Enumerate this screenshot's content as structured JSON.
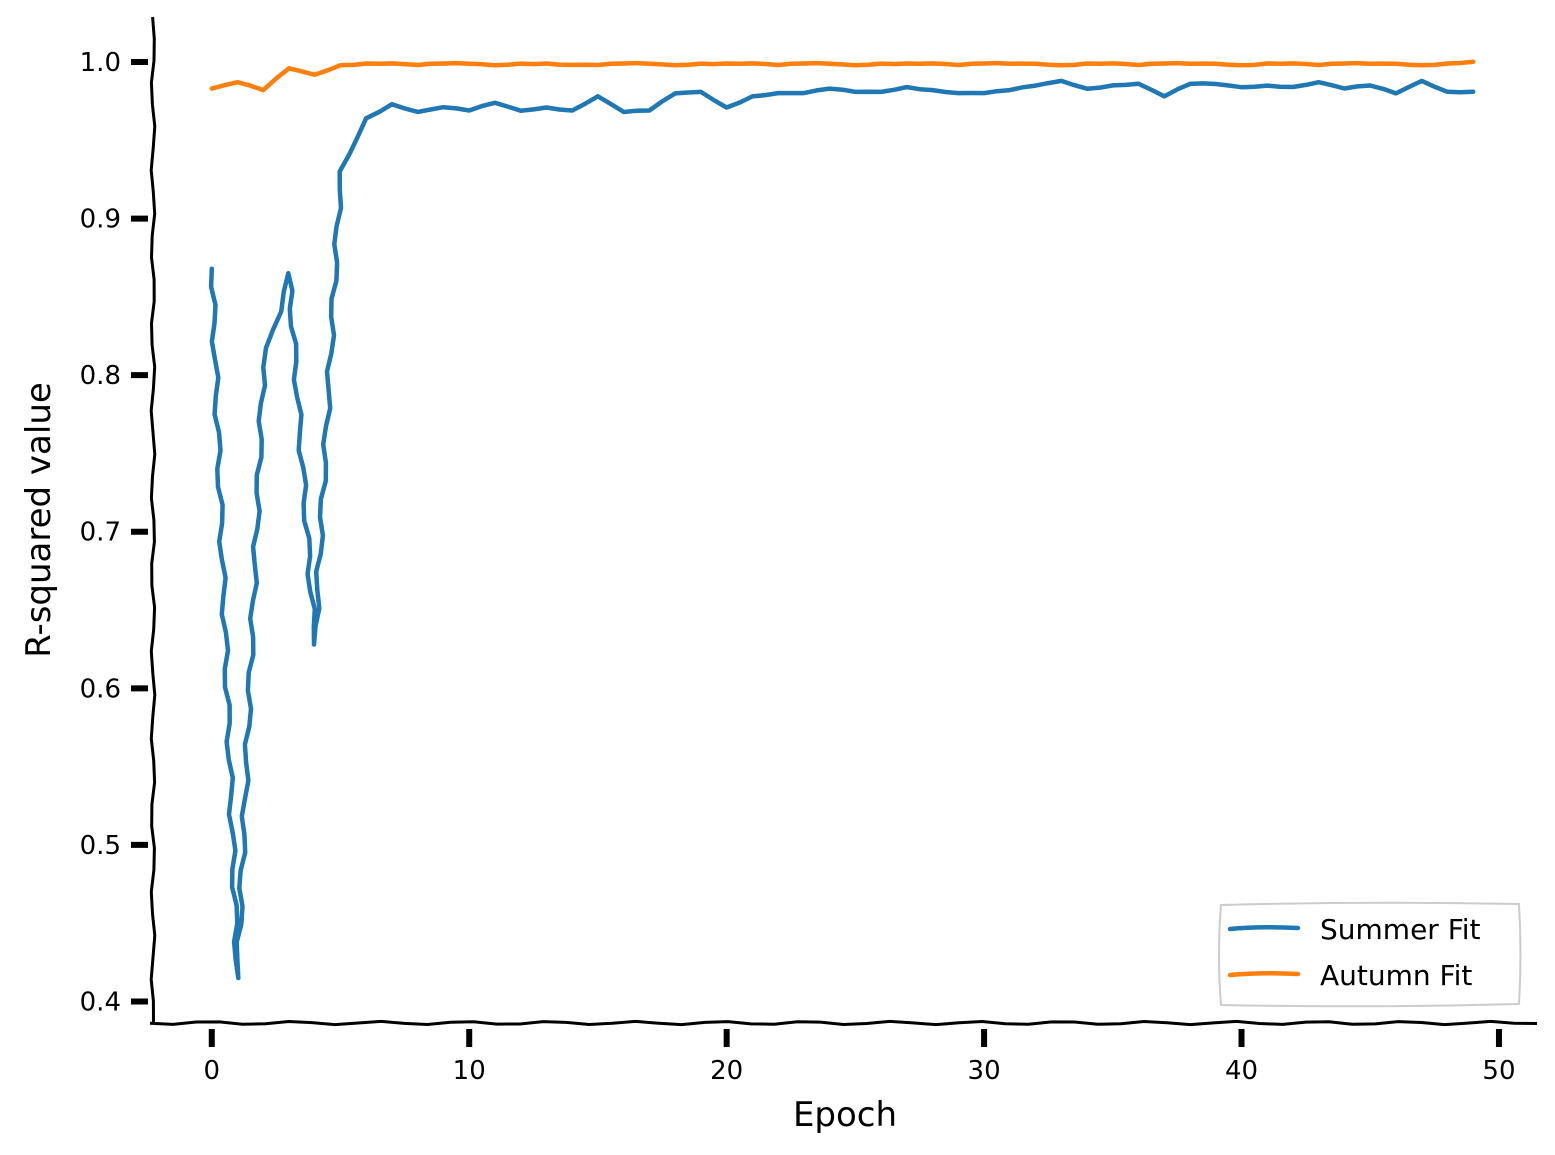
{
  "chart_data": {
    "type": "line",
    "title": "",
    "xlabel": "Epoch",
    "ylabel": "R-squared value",
    "xlim": [
      -2.4,
      51.4
    ],
    "ylim": [
      0.385,
      1.03
    ],
    "x_ticks": [
      0,
      10,
      20,
      30,
      40,
      50
    ],
    "y_ticks": [
      0.4,
      0.5,
      0.6,
      0.7,
      0.8,
      0.9,
      1.0
    ],
    "x_tick_labels": [
      "0",
      "10",
      "20",
      "30",
      "40",
      "50"
    ],
    "y_tick_labels": [
      "0.4",
      "0.5",
      "0.6",
      "0.7",
      "0.8",
      "0.9",
      "1.0"
    ],
    "grid": false,
    "legend_position": "lower-right",
    "style": "xkcd",
    "series": [
      {
        "name": "Summer Fit",
        "color": "#1f77b4",
        "x": [
          0,
          1,
          2,
          3,
          4,
          5,
          6,
          7,
          8,
          9,
          10,
          11,
          12,
          13,
          14,
          15,
          16,
          17,
          18,
          19,
          20,
          21,
          22,
          23,
          24,
          25,
          26,
          27,
          28,
          29,
          30,
          31,
          32,
          33,
          34,
          35,
          36,
          37,
          38,
          39,
          40,
          41,
          42,
          43,
          44,
          45,
          46,
          47,
          48,
          49
        ],
        "values": [
          0.868,
          0.415,
          0.805,
          0.865,
          0.628,
          0.93,
          0.964,
          0.973,
          0.968,
          0.971,
          0.969,
          0.974,
          0.969,
          0.971,
          0.969,
          0.978,
          0.968,
          0.969,
          0.98,
          0.981,
          0.971,
          0.978,
          0.98,
          0.98,
          0.983,
          0.981,
          0.981,
          0.984,
          0.982,
          0.98,
          0.98,
          0.982,
          0.985,
          0.988,
          0.983,
          0.985,
          0.986,
          0.978,
          0.986,
          0.986,
          0.984,
          0.985,
          0.984,
          0.987,
          0.983,
          0.985,
          0.98,
          0.988,
          0.981,
          0.981
        ]
      },
      {
        "name": "Autumn Fit",
        "color": "#ff7f0e",
        "x": [
          0,
          1,
          2,
          3,
          4,
          5,
          6,
          7,
          8,
          9,
          10,
          11,
          12,
          13,
          14,
          15,
          16,
          17,
          18,
          19,
          20,
          21,
          22,
          23,
          24,
          25,
          26,
          27,
          28,
          29,
          30,
          31,
          32,
          33,
          34,
          35,
          36,
          37,
          38,
          39,
          40,
          41,
          42,
          43,
          44,
          45,
          46,
          47,
          48,
          49
        ],
        "values": [
          0.983,
          0.987,
          0.982,
          0.996,
          0.992,
          0.998,
          0.999,
          0.999,
          0.998,
          0.999,
          0.999,
          0.998,
          0.999,
          0.999,
          0.998,
          0.998,
          0.999,
          0.999,
          0.998,
          0.999,
          0.999,
          0.999,
          0.998,
          0.999,
          0.999,
          0.998,
          0.999,
          0.999,
          0.999,
          0.998,
          0.999,
          0.999,
          0.999,
          0.998,
          0.999,
          0.999,
          0.998,
          0.999,
          0.999,
          0.999,
          0.998,
          0.999,
          0.999,
          0.998,
          0.999,
          0.999,
          0.999,
          0.998,
          0.999,
          1.0
        ]
      }
    ]
  }
}
